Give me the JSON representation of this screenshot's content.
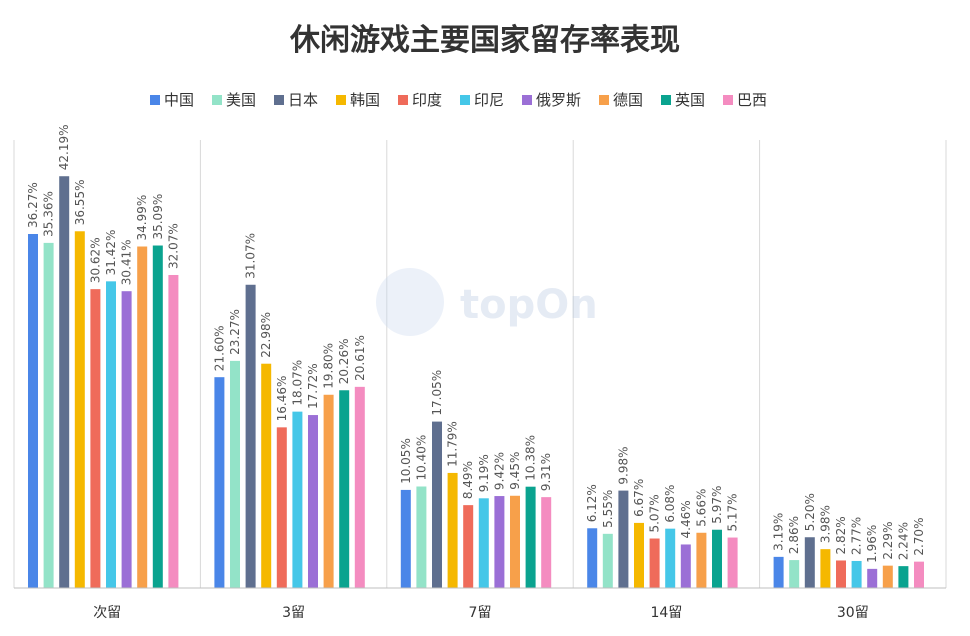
{
  "chart_data": {
    "type": "bar",
    "title": "休闲游戏主要国家留存率表现",
    "categories": [
      "次留",
      "3留",
      "7留",
      "14留",
      "30留"
    ],
    "ylim": [
      0,
      45
    ],
    "grid": false,
    "legend_position": "top",
    "series": [
      {
        "name": "中国",
        "color": "#4a86e8",
        "values": [
          36.27,
          21.6,
          10.05,
          6.12,
          3.19
        ],
        "labels": [
          "36.27%",
          "21.60%",
          "10.05%",
          "6.12%",
          "3.19%"
        ]
      },
      {
        "name": "美国",
        "color": "#93e3c8",
        "values": [
          35.36,
          23.27,
          10.4,
          5.55,
          2.86
        ],
        "labels": [
          "35.36%",
          "23.27%",
          "10.40%",
          "5.55%",
          "2.86%"
        ]
      },
      {
        "name": "日本",
        "color": "#5f6f8f",
        "values": [
          42.19,
          31.07,
          17.05,
          9.98,
          5.2
        ],
        "labels": [
          "42.19%",
          "31.07%",
          "17.05%",
          "9.98%",
          "5.20%"
        ]
      },
      {
        "name": "韩国",
        "color": "#f5b800",
        "values": [
          36.55,
          22.98,
          11.79,
          6.67,
          3.98
        ],
        "labels": [
          "36.55%",
          "22.98%",
          "11.79%",
          "6.67%",
          "3.98%"
        ]
      },
      {
        "name": "印度",
        "color": "#ef6b5a",
        "values": [
          30.62,
          16.46,
          8.49,
          5.07,
          2.82
        ],
        "labels": [
          "30.62%",
          "16.46%",
          "8.49%",
          "5.07%",
          "2.82%"
        ]
      },
      {
        "name": "印尼",
        "color": "#45c7e8",
        "values": [
          31.42,
          18.07,
          9.19,
          6.08,
          2.77
        ],
        "labels": [
          "31.42%",
          "18.07%",
          "9.19%",
          "6.08%",
          "2.77%"
        ]
      },
      {
        "name": "俄罗斯",
        "color": "#9b6fd6",
        "values": [
          30.41,
          17.72,
          9.42,
          4.46,
          1.96
        ],
        "labels": [
          "30.41%",
          "17.72%",
          "9.42%",
          "4.46%",
          "1.96%"
        ]
      },
      {
        "name": "德国",
        "color": "#f7a04a",
        "values": [
          34.99,
          19.8,
          9.45,
          5.66,
          2.29
        ],
        "labels": [
          "34.99%",
          "19.80%",
          "9.45%",
          "5.66%",
          "2.29%"
        ]
      },
      {
        "name": "英国",
        "color": "#0aa38f",
        "values": [
          35.09,
          20.26,
          10.38,
          5.97,
          2.24
        ],
        "labels": [
          "35.09%",
          "20.26%",
          "10.38%",
          "5.97%",
          "2.24%"
        ]
      },
      {
        "name": "巴西",
        "color": "#f48cc0",
        "values": [
          32.07,
          20.61,
          9.31,
          5.17,
          2.7
        ],
        "labels": [
          "32.07%",
          "20.61%",
          "9.31%",
          "5.17%",
          "2.70%"
        ]
      }
    ]
  },
  "watermark": {
    "text": "topOn",
    "icon": "topon-logo-icon"
  }
}
